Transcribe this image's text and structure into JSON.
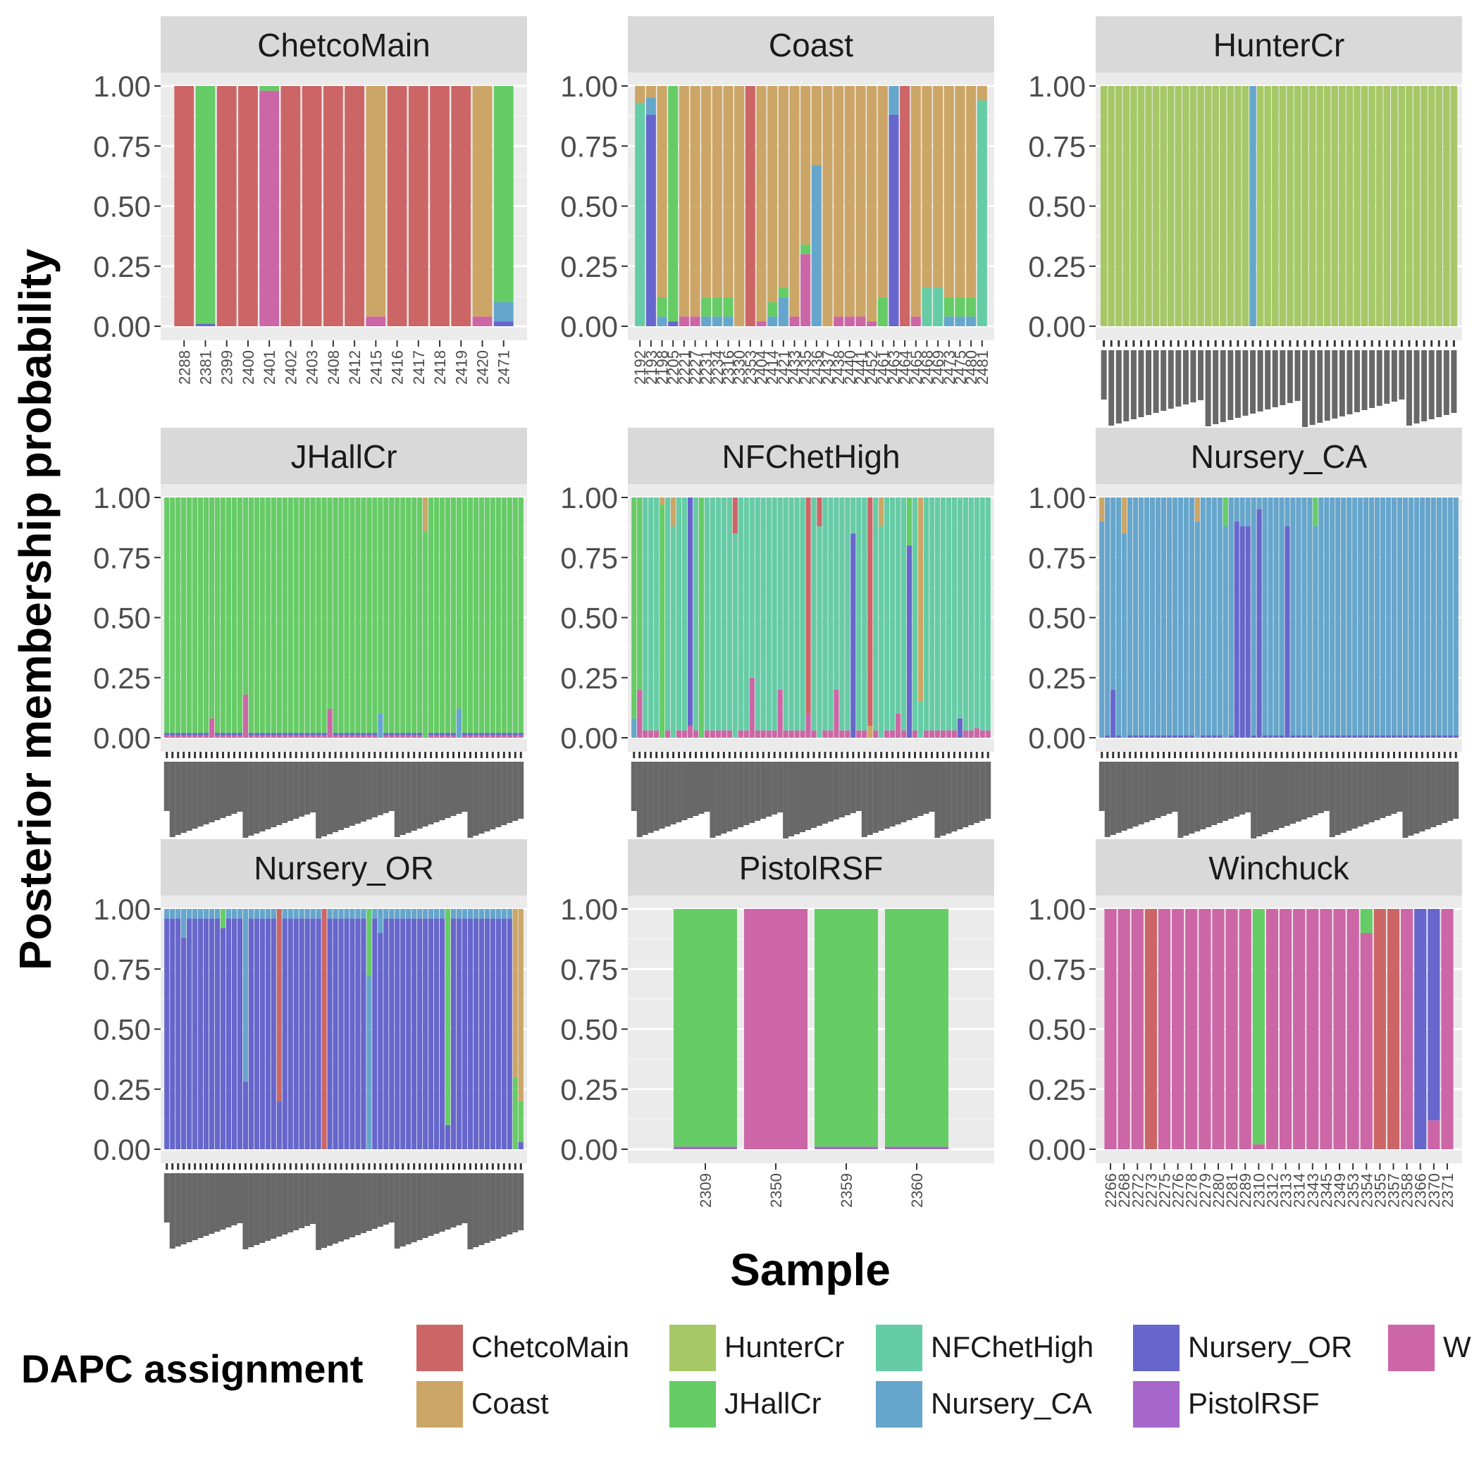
{
  "chart_data": {
    "type": "bar",
    "stacked": true,
    "faceted": true,
    "xlabel": "Sample",
    "ylabel": "Posterior membership probability",
    "ylim": [
      0,
      1
    ],
    "yticks": [
      "0.00",
      "0.25",
      "0.50",
      "0.75",
      "1.00"
    ],
    "grid": true,
    "legend": {
      "title": "DAPC assignment",
      "position": "bottom",
      "entries": [
        {
          "name": "ChetcoMain",
          "color": "#CC6666"
        },
        {
          "name": "Coast",
          "color": "#CCA666"
        },
        {
          "name": "HunterCr",
          "color": "#A6C866"
        },
        {
          "name": "JHallCr",
          "color": "#66CC66"
        },
        {
          "name": "NFChetHigh",
          "color": "#66CCA6"
        },
        {
          "name": "Nursery_CA",
          "color": "#66A6CC"
        },
        {
          "name": "Nursery_OR",
          "color": "#6666CC"
        },
        {
          "name": "PistolRSF",
          "color": "#A666CC"
        },
        {
          "name": "W",
          "color": "#CC66A6"
        }
      ]
    },
    "facets": [
      {
        "name": "ChetcoMain",
        "samples": [
          "2288",
          "2381",
          "2399",
          "2400",
          "2401",
          "2402",
          "2403",
          "2408",
          "2412",
          "2415",
          "2416",
          "2417",
          "2418",
          "2419",
          "2420",
          "2471"
        ],
        "labels_legible": true,
        "bars": [
          {
            "ChetcoMain": 1.0
          },
          {
            "JHallCr": 0.99,
            "Nursery_OR": 0.01
          },
          {
            "ChetcoMain": 1.0
          },
          {
            "ChetcoMain": 1.0
          },
          {
            "W": 0.98,
            "JHallCr": 0.02
          },
          {
            "ChetcoMain": 1.0
          },
          {
            "ChetcoMain": 1.0
          },
          {
            "ChetcoMain": 1.0
          },
          {
            "ChetcoMain": 1.0
          },
          {
            "Coast": 0.96,
            "W": 0.04
          },
          {
            "ChetcoMain": 1.0
          },
          {
            "ChetcoMain": 1.0
          },
          {
            "ChetcoMain": 1.0
          },
          {
            "ChetcoMain": 1.0
          },
          {
            "Coast": 0.96,
            "W": 0.04
          },
          {
            "JHallCr": 0.9,
            "Nursery_CA": 0.08,
            "Nursery_OR": 0.02
          }
        ]
      },
      {
        "name": "Coast",
        "samples": [
          "2192",
          "2193",
          "2198",
          "2205",
          "2221",
          "2227",
          "2231",
          "2234",
          "2316",
          "2330",
          "2353",
          "2404",
          "2414",
          "2421",
          "2433",
          "2435",
          "2436",
          "2437",
          "2438",
          "2440",
          "2441",
          "2452",
          "2461",
          "2463",
          "2464",
          "2465",
          "2468",
          "2469",
          "2473",
          "2475",
          "2480",
          "2481"
        ],
        "labels_legible": false,
        "bars": [
          {
            "NFChetHigh": 0.93,
            "Coast": 0.07
          },
          {
            "Nursery_OR": 0.88,
            "Nursery_CA": 0.07,
            "Coast": 0.05
          },
          {
            "Coast": 0.88,
            "JHallCr": 0.08,
            "Nursery_CA": 0.04
          },
          {
            "JHallCr": 0.98,
            "Nursery_OR": 0.02
          },
          {
            "Coast": 0.96,
            "W": 0.04
          },
          {
            "Coast": 0.96,
            "W": 0.04
          },
          {
            "Coast": 0.88,
            "JHallCr": 0.08,
            "Nursery_CA": 0.04
          },
          {
            "Coast": 0.88,
            "JHallCr": 0.08,
            "Nursery_CA": 0.04
          },
          {
            "Coast": 0.88,
            "JHallCr": 0.08,
            "Nursery_CA": 0.04
          },
          {
            "Coast": 1.0
          },
          {
            "ChetcoMain": 1.0
          },
          {
            "Coast": 0.98,
            "W": 0.02
          },
          {
            "Coast": 0.9,
            "JHallCr": 0.06,
            "Nursery_CA": 0.04
          },
          {
            "Coast": 0.84,
            "JHallCr": 0.04,
            "Nursery_CA": 0.12
          },
          {
            "Coast": 0.96,
            "W": 0.04
          },
          {
            "Coast": 0.66,
            "JHallCr": 0.04,
            "W": 0.3
          },
          {
            "Coast": 0.33,
            "Nursery_CA": 0.67
          },
          {
            "Coast": 1.0
          },
          {
            "Coast": 0.96,
            "W": 0.04
          },
          {
            "Coast": 0.96,
            "W": 0.04
          },
          {
            "Coast": 0.96,
            "W": 0.04
          },
          {
            "Coast": 0.98,
            "W": 0.02
          },
          {
            "Coast": 0.88,
            "JHallCr": 0.12
          },
          {
            "Nursery_CA": 0.12,
            "Nursery_OR": 0.88
          },
          {
            "ChetcoMain": 1.0
          },
          {
            "Coast": 0.96,
            "W": 0.04
          },
          {
            "Coast": 0.84,
            "NFChetHigh": 0.16
          },
          {
            "Coast": 0.84,
            "NFChetHigh": 0.16
          },
          {
            "Coast": 0.88,
            "JHallCr": 0.08,
            "Nursery_CA": 0.04
          },
          {
            "Coast": 0.88,
            "JHallCr": 0.08,
            "Nursery_CA": 0.04
          },
          {
            "Coast": 0.88,
            "JHallCr": 0.08,
            "Nursery_CA": 0.04
          },
          {
            "Coast": 0.06,
            "NFChetHigh": 0.94
          }
        ]
      },
      {
        "name": "HunterCr",
        "count": 48,
        "labels_legible": false,
        "base": {
          "HunterCr": 1.0
        },
        "overrides": {
          "20": {
            "Nursery_CA": 1.0
          }
        }
      },
      {
        "name": "JHallCr",
        "count": 64,
        "labels_legible": false,
        "base": {
          "JHallCr": 0.98,
          "W": 0.01,
          "Nursery_OR": 0.01
        },
        "overrides": {
          "8": {
            "JHallCr": 0.92,
            "W": 0.08
          },
          "14": {
            "JHallCr": 0.82,
            "W": 0.18
          },
          "29": {
            "JHallCr": 0.88,
            "W": 0.12
          },
          "38": {
            "JHallCr": 0.9,
            "Nursery_CA": 0.1
          },
          "46": {
            "JHallCr": 0.86,
            "Coast": 0.14
          },
          "52": {
            "JHallCr": 0.88,
            "Nursery_CA": 0.12
          }
        }
      },
      {
        "name": "NFChetHigh",
        "count": 64,
        "labels_legible": false,
        "base": {
          "NFChetHigh": 0.97,
          "W": 0.03
        },
        "overrides": {
          "0": {
            "JHallCr": 0.92,
            "Nursery_CA": 0.08
          },
          "1": {
            "JHallCr": 0.8,
            "W": 0.2
          },
          "5": {
            "JHallCr": 0.97,
            "Coast": 0.03
          },
          "7": {
            "NFChetHigh": 0.88,
            "Coast": 0.12
          },
          "10": {
            "Nursery_OR": 0.95,
            "W": 0.05
          },
          "12": {
            "JHallCr": 1.0
          },
          "18": {
            "NFChetHigh": 0.85,
            "ChetcoMain": 0.15
          },
          "21": {
            "NFChetHigh": 0.75,
            "W": 0.25
          },
          "26": {
            "NFChetHigh": 0.8,
            "W": 0.2
          },
          "31": {
            "ChetcoMain": 0.9,
            "W": 0.1
          },
          "33": {
            "NFChetHigh": 0.88,
            "ChetcoMain": 0.12
          },
          "36": {
            "NFChetHigh": 0.8,
            "W": 0.2
          },
          "39": {
            "Nursery_OR": 0.85,
            "NFChetHigh": 0.15
          },
          "42": {
            "ChetcoMain": 0.95,
            "Coast": 0.05
          },
          "44": {
            "NFChetHigh": 0.88,
            "Coast": 0.12
          },
          "47": {
            "NFChetHigh": 0.9,
            "W": 0.1
          },
          "49": {
            "Nursery_OR": 0.8,
            "JHallCr": 0.2
          },
          "51": {
            "Coast": 0.85,
            "NFChetHigh": 0.15
          },
          "58": {
            "NFChetHigh": 0.92,
            "Nursery_OR": 0.08
          },
          "61": {
            "NFChetHigh": 0.96,
            "W": 0.04
          }
        }
      },
      {
        "name": "Nursery_CA",
        "count": 64,
        "labels_legible": false,
        "base": {
          "Nursery_CA": 0.99,
          "Nursery_OR": 0.01
        },
        "overrides": {
          "0": {
            "Nursery_CA": 0.9,
            "Coast": 0.1
          },
          "2": {
            "Nursery_CA": 0.8,
            "Nursery_OR": 0.2
          },
          "4": {
            "Nursery_CA": 0.85,
            "Coast": 0.15
          },
          "17": {
            "Nursery_CA": 0.9,
            "Coast": 0.1
          },
          "22": {
            "JHallCr": 0.12,
            "Nursery_CA": 0.88
          },
          "24": {
            "Nursery_OR": 0.9,
            "Nursery_CA": 0.1
          },
          "25": {
            "Nursery_OR": 0.88,
            "Nursery_CA": 0.12
          },
          "26": {
            "Nursery_OR": 0.88,
            "Nursery_CA": 0.12
          },
          "28": {
            "Nursery_OR": 0.95,
            "Nursery_CA": 0.05
          },
          "33": {
            "Nursery_OR": 0.88,
            "Nursery_CA": 0.12
          },
          "38": {
            "Nursery_CA": 0.88,
            "JHallCr": 0.12
          }
        }
      },
      {
        "name": "Nursery_OR",
        "count": 64,
        "labels_legible": false,
        "base": {
          "Nursery_OR": 0.96,
          "Nursery_CA": 0.04
        },
        "overrides": {
          "3": {
            "Nursery_OR": 0.88,
            "Nursery_CA": 0.12
          },
          "10": {
            "Nursery_OR": 0.92,
            "JHallCr": 0.08
          },
          "14": {
            "Nursery_CA": 0.72,
            "Nursery_OR": 0.28
          },
          "20": {
            "ChetcoMain": 0.8,
            "Nursery_OR": 0.2
          },
          "28": {
            "ChetcoMain": 1.0
          },
          "36": {
            "Nursery_CA": 0.72,
            "JHallCr": 0.28
          },
          "38": {
            "Nursery_OR": 0.9,
            "Nursery_CA": 0.1
          },
          "50": {
            "JHallCr": 0.9,
            "Nursery_OR": 0.1
          },
          "62": {
            "Coast": 0.7,
            "JHallCr": 0.3
          },
          "63": {
            "Coast": 0.8,
            "JHallCr": 0.17,
            "Nursery_OR": 0.03
          }
        }
      },
      {
        "name": "PistolRSF",
        "samples": [
          "2309",
          "2350",
          "2359",
          "2360"
        ],
        "labels_legible": true,
        "bars": [
          {
            "JHallCr": 0.99,
            "PistolRSF": 0.01
          },
          {
            "W": 1.0
          },
          {
            "JHallCr": 0.99,
            "PistolRSF": 0.01
          },
          {
            "JHallCr": 0.99,
            "PistolRSF": 0.01
          }
        ]
      },
      {
        "name": "Winchuck",
        "samples": [
          "2266",
          "2268",
          "2272",
          "2273",
          "2275",
          "2276",
          "2278",
          "2279",
          "2280",
          "2281",
          "2289",
          "2310",
          "2312",
          "2313",
          "2314",
          "2343",
          "2345",
          "2349",
          "2353",
          "2354",
          "2355",
          "2357",
          "2358",
          "2366",
          "2370",
          "2371"
        ],
        "labels_legible": true,
        "bars": [
          {
            "W": 1.0
          },
          {
            "W": 1.0
          },
          {
            "W": 1.0
          },
          {
            "ChetcoMain": 1.0
          },
          {
            "W": 1.0
          },
          {
            "W": 1.0
          },
          {
            "W": 1.0
          },
          {
            "W": 1.0
          },
          {
            "W": 1.0
          },
          {
            "W": 1.0
          },
          {
            "W": 1.0
          },
          {
            "JHallCr": 0.98,
            "W": 0.02
          },
          {
            "W": 1.0
          },
          {
            "W": 1.0
          },
          {
            "W": 1.0
          },
          {
            "W": 1.0
          },
          {
            "W": 1.0
          },
          {
            "W": 1.0
          },
          {
            "W": 1.0
          },
          {
            "W": 0.9,
            "JHallCr": 0.1
          },
          {
            "ChetcoMain": 1.0
          },
          {
            "ChetcoMain": 1.0
          },
          {
            "W": 1.0
          },
          {
            "Nursery_OR": 1.0
          },
          {
            "W": 0.12,
            "Nursery_OR": 0.88
          },
          {
            "W": 1.0
          }
        ]
      }
    ]
  }
}
